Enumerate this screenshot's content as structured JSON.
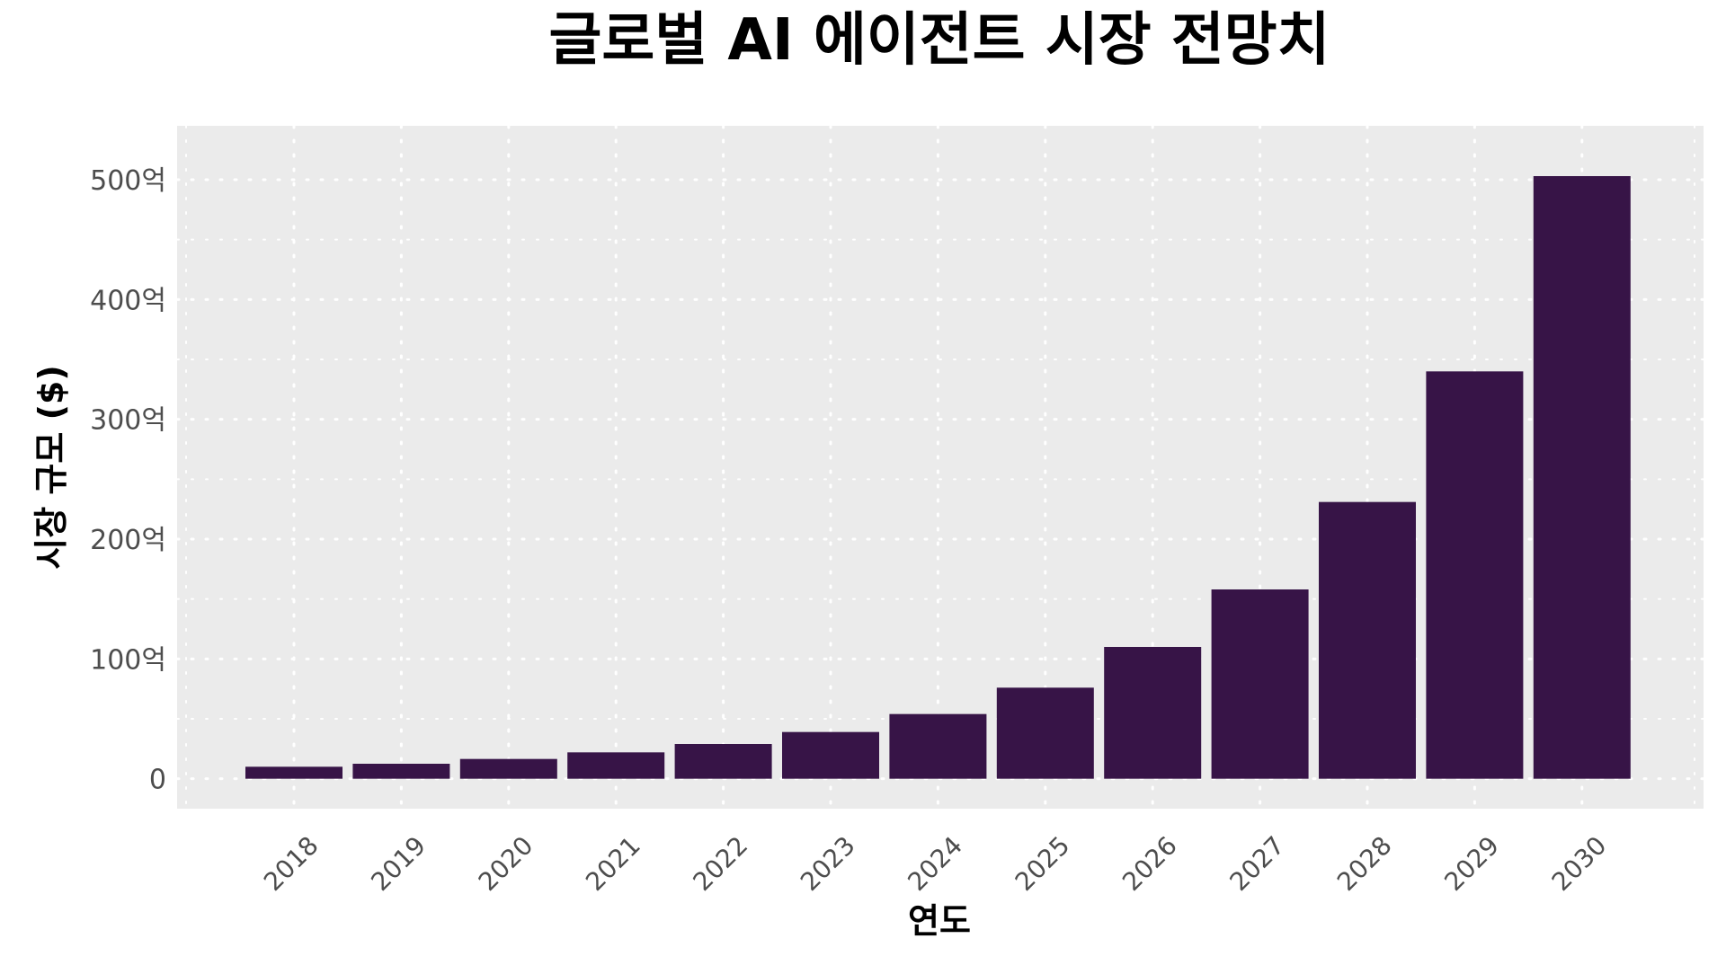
{
  "chart_data": {
    "type": "bar",
    "title": "글로벌 AI 에이전트 시장 전망치",
    "xlabel": "연도",
    "ylabel": "시장 규모 ($)",
    "categories": [
      "2018",
      "2019",
      "2020",
      "2021",
      "2022",
      "2023",
      "2024",
      "2025",
      "2026",
      "2027",
      "2028",
      "2029",
      "2030"
    ],
    "values": [
      10,
      12.5,
      16.5,
      22,
      29,
      39,
      54,
      76,
      110,
      158,
      231,
      340,
      503
    ],
    "value_unit": "억 달러",
    "ylim": [
      -25,
      545
    ],
    "y_ticks": [
      0,
      100,
      200,
      300,
      400,
      500
    ],
    "y_tick_labels": [
      "0",
      "100억",
      "200억",
      "300억",
      "400억",
      "500억"
    ],
    "grid": true,
    "grid_style": "dotted white",
    "legend": "none",
    "colors": {
      "bar": "#371447",
      "panel_background": "#ebebeb",
      "grid": "#ffffff",
      "text": "#000000",
      "tick_text": "#4d4d4d"
    }
  }
}
